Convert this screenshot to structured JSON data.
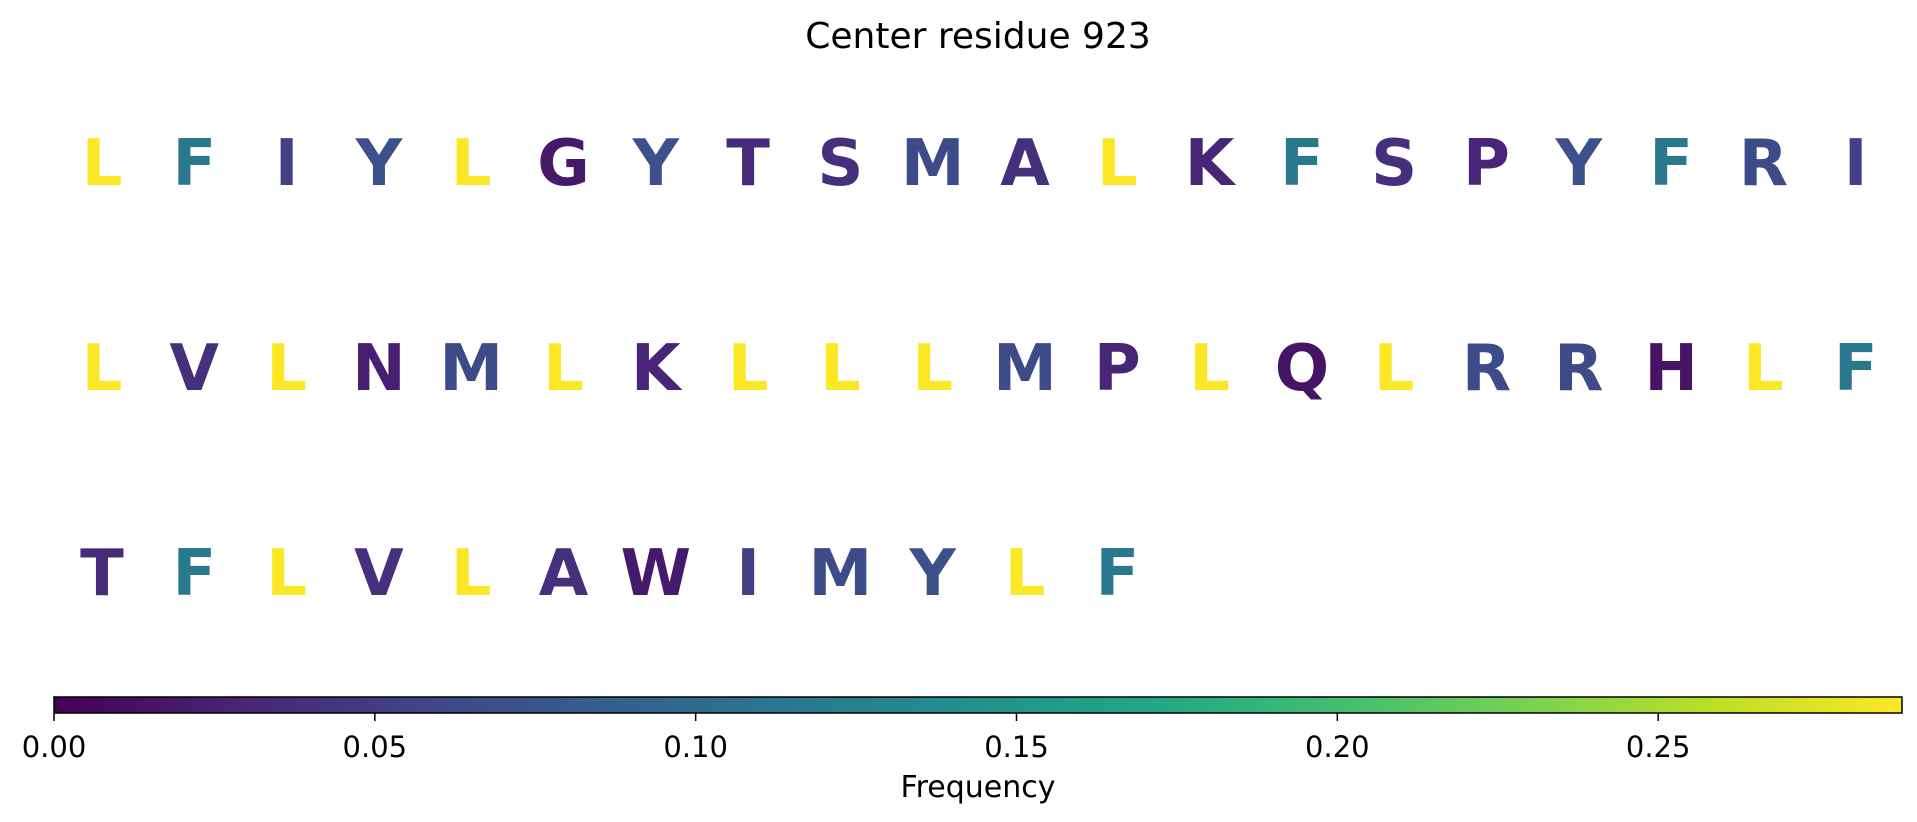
{
  "chart_data": {
    "type": "heatmap",
    "title": "Center residue 923",
    "rows": [
      {
        "residues": [
          "L",
          "F",
          "I",
          "Y",
          "L",
          "G",
          "Y",
          "T",
          "S",
          "M",
          "A",
          "L",
          "K",
          "F",
          "S",
          "P",
          "Y",
          "F",
          "R",
          "I"
        ],
        "values": [
          0.287,
          0.115,
          0.055,
          0.07,
          0.287,
          0.02,
          0.07,
          0.035,
          0.04,
          0.065,
          0.04,
          0.287,
          0.03,
          0.115,
          0.04,
          0.03,
          0.07,
          0.115,
          0.065,
          0.055
        ]
      },
      {
        "residues": [
          "L",
          "V",
          "L",
          "N",
          "M",
          "L",
          "K",
          "L",
          "L",
          "L",
          "M",
          "P",
          "L",
          "Q",
          "L",
          "R",
          "R",
          "H",
          "L",
          "F"
        ],
        "values": [
          0.287,
          0.04,
          0.287,
          0.025,
          0.065,
          0.287,
          0.03,
          0.287,
          0.287,
          0.287,
          0.065,
          0.03,
          0.287,
          0.015,
          0.287,
          0.065,
          0.065,
          0.015,
          0.287,
          0.115
        ]
      },
      {
        "residues": [
          "T",
          "F",
          "L",
          "V",
          "L",
          "A",
          "W",
          "I",
          "M",
          "Y",
          "L",
          "F"
        ],
        "values": [
          0.035,
          0.115,
          0.287,
          0.04,
          0.287,
          0.04,
          0.02,
          0.055,
          0.065,
          0.07,
          0.287,
          0.115
        ]
      }
    ],
    "colorbar": {
      "label": "Frequency",
      "min": 0.0,
      "max": 0.288,
      "ticks": [
        0.0,
        0.05,
        0.1,
        0.15,
        0.2,
        0.25
      ],
      "tick_labels": [
        "0.00",
        "0.05",
        "0.10",
        "0.15",
        "0.20",
        "0.25"
      ],
      "colormap": "viridis"
    }
  }
}
